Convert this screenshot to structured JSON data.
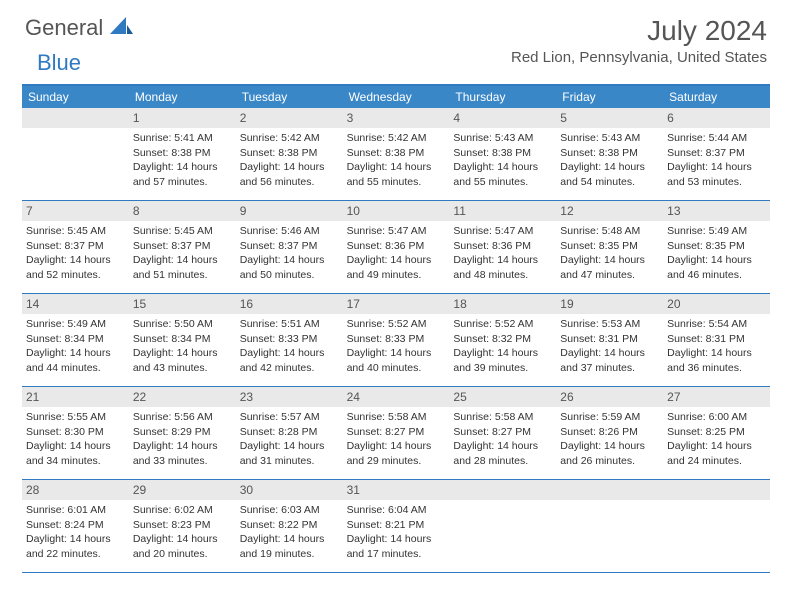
{
  "logo": {
    "general": "General",
    "blue": "Blue"
  },
  "title": "July 2024",
  "location": "Red Lion, Pennsylvania, United States",
  "header_bg": "#3a87c8",
  "rule_color": "#2f7ac0",
  "daynum_bg": "#e9e9e9",
  "dow": [
    "Sunday",
    "Monday",
    "Tuesday",
    "Wednesday",
    "Thursday",
    "Friday",
    "Saturday"
  ],
  "first_weekday": 1,
  "days": [
    {
      "n": 1,
      "sr": "5:41 AM",
      "ss": "8:38 PM",
      "dl": "14 hours and 57 minutes."
    },
    {
      "n": 2,
      "sr": "5:42 AM",
      "ss": "8:38 PM",
      "dl": "14 hours and 56 minutes."
    },
    {
      "n": 3,
      "sr": "5:42 AM",
      "ss": "8:38 PM",
      "dl": "14 hours and 55 minutes."
    },
    {
      "n": 4,
      "sr": "5:43 AM",
      "ss": "8:38 PM",
      "dl": "14 hours and 55 minutes."
    },
    {
      "n": 5,
      "sr": "5:43 AM",
      "ss": "8:38 PM",
      "dl": "14 hours and 54 minutes."
    },
    {
      "n": 6,
      "sr": "5:44 AM",
      "ss": "8:37 PM",
      "dl": "14 hours and 53 minutes."
    },
    {
      "n": 7,
      "sr": "5:45 AM",
      "ss": "8:37 PM",
      "dl": "14 hours and 52 minutes."
    },
    {
      "n": 8,
      "sr": "5:45 AM",
      "ss": "8:37 PM",
      "dl": "14 hours and 51 minutes."
    },
    {
      "n": 9,
      "sr": "5:46 AM",
      "ss": "8:37 PM",
      "dl": "14 hours and 50 minutes."
    },
    {
      "n": 10,
      "sr": "5:47 AM",
      "ss": "8:36 PM",
      "dl": "14 hours and 49 minutes."
    },
    {
      "n": 11,
      "sr": "5:47 AM",
      "ss": "8:36 PM",
      "dl": "14 hours and 48 minutes."
    },
    {
      "n": 12,
      "sr": "5:48 AM",
      "ss": "8:35 PM",
      "dl": "14 hours and 47 minutes."
    },
    {
      "n": 13,
      "sr": "5:49 AM",
      "ss": "8:35 PM",
      "dl": "14 hours and 46 minutes."
    },
    {
      "n": 14,
      "sr": "5:49 AM",
      "ss": "8:34 PM",
      "dl": "14 hours and 44 minutes."
    },
    {
      "n": 15,
      "sr": "5:50 AM",
      "ss": "8:34 PM",
      "dl": "14 hours and 43 minutes."
    },
    {
      "n": 16,
      "sr": "5:51 AM",
      "ss": "8:33 PM",
      "dl": "14 hours and 42 minutes."
    },
    {
      "n": 17,
      "sr": "5:52 AM",
      "ss": "8:33 PM",
      "dl": "14 hours and 40 minutes."
    },
    {
      "n": 18,
      "sr": "5:52 AM",
      "ss": "8:32 PM",
      "dl": "14 hours and 39 minutes."
    },
    {
      "n": 19,
      "sr": "5:53 AM",
      "ss": "8:31 PM",
      "dl": "14 hours and 37 minutes."
    },
    {
      "n": 20,
      "sr": "5:54 AM",
      "ss": "8:31 PM",
      "dl": "14 hours and 36 minutes."
    },
    {
      "n": 21,
      "sr": "5:55 AM",
      "ss": "8:30 PM",
      "dl": "14 hours and 34 minutes."
    },
    {
      "n": 22,
      "sr": "5:56 AM",
      "ss": "8:29 PM",
      "dl": "14 hours and 33 minutes."
    },
    {
      "n": 23,
      "sr": "5:57 AM",
      "ss": "8:28 PM",
      "dl": "14 hours and 31 minutes."
    },
    {
      "n": 24,
      "sr": "5:58 AM",
      "ss": "8:27 PM",
      "dl": "14 hours and 29 minutes."
    },
    {
      "n": 25,
      "sr": "5:58 AM",
      "ss": "8:27 PM",
      "dl": "14 hours and 28 minutes."
    },
    {
      "n": 26,
      "sr": "5:59 AM",
      "ss": "8:26 PM",
      "dl": "14 hours and 26 minutes."
    },
    {
      "n": 27,
      "sr": "6:00 AM",
      "ss": "8:25 PM",
      "dl": "14 hours and 24 minutes."
    },
    {
      "n": 28,
      "sr": "6:01 AM",
      "ss": "8:24 PM",
      "dl": "14 hours and 22 minutes."
    },
    {
      "n": 29,
      "sr": "6:02 AM",
      "ss": "8:23 PM",
      "dl": "14 hours and 20 minutes."
    },
    {
      "n": 30,
      "sr": "6:03 AM",
      "ss": "8:22 PM",
      "dl": "14 hours and 19 minutes."
    },
    {
      "n": 31,
      "sr": "6:04 AM",
      "ss": "8:21 PM",
      "dl": "14 hours and 17 minutes."
    }
  ],
  "labels": {
    "sunrise": "Sunrise:",
    "sunset": "Sunset:",
    "daylight": "Daylight:"
  }
}
